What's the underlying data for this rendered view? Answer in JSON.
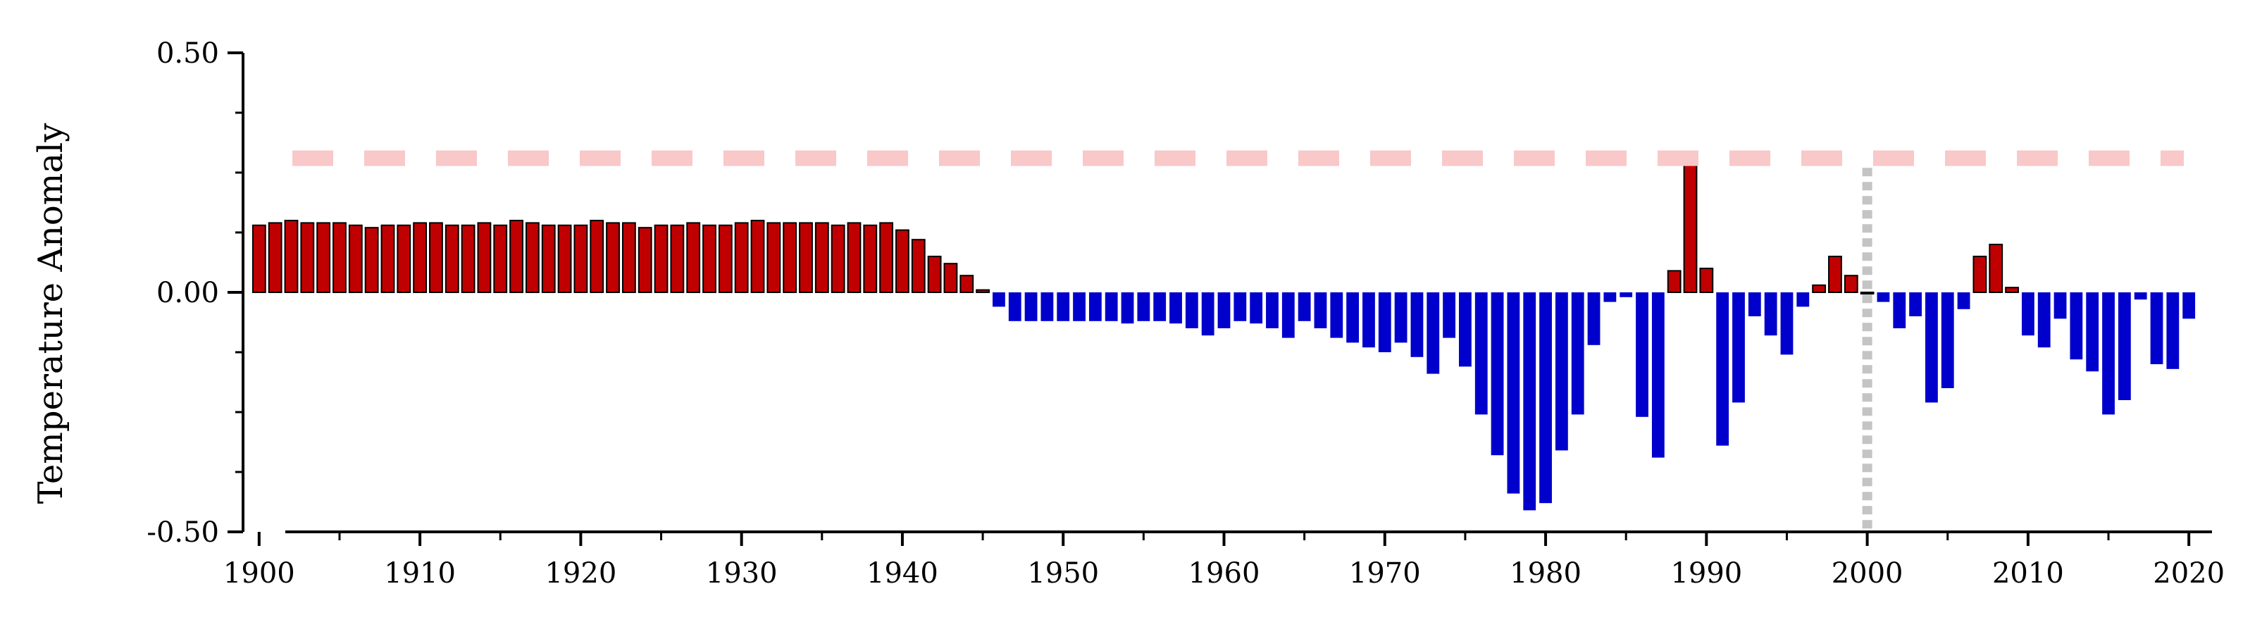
{
  "chart_data": {
    "type": "bar",
    "title": "",
    "xlabel": "",
    "ylabel": "Temperature Anomaly",
    "xlim": [
      1899,
      2021
    ],
    "ylim": [
      -0.5,
      0.5
    ],
    "x_ticks": [
      "1900",
      "1910",
      "1920",
      "1930",
      "1940",
      "1950",
      "1960",
      "1970",
      "1980",
      "1990",
      "2000",
      "2010",
      "2020"
    ],
    "y_ticks": [
      "0.50",
      "0.00",
      "-0.50"
    ],
    "grid": false,
    "positive_color": "#c00000",
    "negative_color": "#0000cc",
    "bar_edge_color": "#000000",
    "reference_line": {
      "value": 0.28,
      "color": "#f9c8c8",
      "style": "dashed"
    },
    "marker_line": {
      "year": 2000,
      "color": "#c4c4c4",
      "style": "dotted"
    },
    "x": [
      1900,
      1901,
      1902,
      1903,
      1904,
      1905,
      1906,
      1907,
      1908,
      1909,
      1910,
      1911,
      1912,
      1913,
      1914,
      1915,
      1916,
      1917,
      1918,
      1919,
      1920,
      1921,
      1922,
      1923,
      1924,
      1925,
      1926,
      1927,
      1928,
      1929,
      1930,
      1931,
      1932,
      1933,
      1934,
      1935,
      1936,
      1937,
      1938,
      1939,
      1940,
      1941,
      1942,
      1943,
      1944,
      1945,
      1946,
      1947,
      1948,
      1949,
      1950,
      1951,
      1952,
      1953,
      1954,
      1955,
      1956,
      1957,
      1958,
      1959,
      1960,
      1961,
      1962,
      1963,
      1964,
      1965,
      1966,
      1967,
      1968,
      1969,
      1970,
      1971,
      1972,
      1973,
      1974,
      1975,
      1976,
      1977,
      1978,
      1979,
      1980,
      1981,
      1982,
      1983,
      1984,
      1985,
      1986,
      1987,
      1988,
      1989,
      1990,
      1991,
      1992,
      1993,
      1994,
      1995,
      1996,
      1997,
      1998,
      1999,
      2000,
      2001,
      2002,
      2003,
      2004,
      2005,
      2006,
      2007,
      2008,
      2009,
      2010,
      2011,
      2012,
      2013,
      2014,
      2015,
      2016,
      2017,
      2018,
      2019,
      2020
    ],
    "values": [
      0.14,
      0.145,
      0.15,
      0.145,
      0.145,
      0.145,
      0.14,
      0.135,
      0.14,
      0.14,
      0.145,
      0.145,
      0.14,
      0.14,
      0.145,
      0.14,
      0.15,
      0.145,
      0.14,
      0.14,
      0.14,
      0.15,
      0.145,
      0.145,
      0.135,
      0.14,
      0.14,
      0.145,
      0.14,
      0.14,
      0.145,
      0.15,
      0.145,
      0.145,
      0.145,
      0.145,
      0.14,
      0.145,
      0.14,
      0.145,
      0.13,
      0.11,
      0.075,
      0.06,
      0.035,
      0.005,
      -0.03,
      -0.06,
      -0.06,
      -0.06,
      -0.06,
      -0.06,
      -0.06,
      -0.06,
      -0.065,
      -0.06,
      -0.06,
      -0.065,
      -0.075,
      -0.09,
      -0.075,
      -0.06,
      -0.065,
      -0.075,
      -0.095,
      -0.06,
      -0.075,
      -0.095,
      -0.105,
      -0.115,
      -0.125,
      -0.105,
      -0.135,
      -0.17,
      -0.095,
      -0.155,
      -0.255,
      -0.34,
      -0.42,
      -0.455,
      -0.44,
      -0.33,
      -0.255,
      -0.11,
      -0.02,
      -0.01,
      -0.26,
      -0.345,
      0.045,
      0.285,
      0.05,
      -0.32,
      -0.23,
      -0.05,
      -0.09,
      -0.13,
      -0.03,
      0.015,
      0.075,
      0.035,
      0.0,
      -0.02,
      -0.075,
      -0.05,
      -0.23,
      -0.2,
      -0.035,
      0.075,
      0.1,
      0.01,
      -0.09,
      -0.115,
      -0.055,
      -0.14,
      -0.165,
      -0.255,
      -0.225,
      -0.015,
      -0.15,
      -0.16,
      -0.055
    ]
  }
}
